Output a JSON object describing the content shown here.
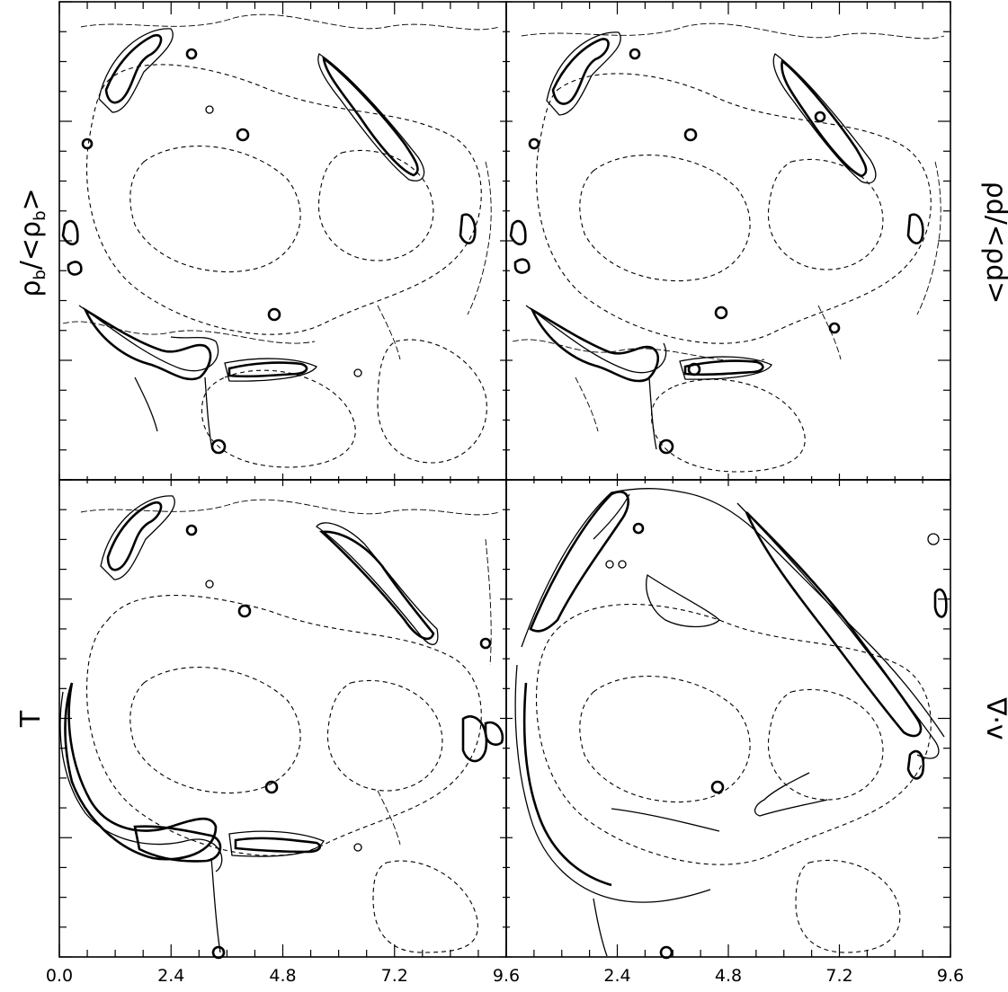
{
  "chart_data": [
    {
      "type": "contour",
      "panel": "top-left",
      "label": "",
      "x_ticks": [
        "0.0",
        "2.4",
        "4.8",
        "7.2",
        "9.6"
      ],
      "xlim": [
        0.0,
        9.6
      ],
      "ylim": [
        0.0,
        9.6
      ]
    },
    {
      "type": "contour",
      "panel": "top-right",
      "label": "ρd/<ρd>",
      "xlim": [
        0.0,
        9.6
      ],
      "ylim": [
        0.0,
        9.6
      ]
    },
    {
      "type": "contour",
      "panel": "bottom-left",
      "label": "T",
      "xlim": [
        0.0,
        9.6
      ],
      "ylim": [
        0.0,
        9.6
      ]
    },
    {
      "type": "contour",
      "panel": "bottom-right",
      "label": "∇·v",
      "x_ticks": [
        "2.4",
        "4.8",
        "7.2",
        "9.6"
      ],
      "xlim": [
        0.0,
        9.6
      ],
      "ylim": [
        0.0,
        9.6
      ]
    }
  ],
  "labels": {
    "top_left_main": "ρ",
    "top_left_sub": "b",
    "top_left_rest": "/<ρ",
    "top_left_sub2": "b",
    "top_left_close": ">",
    "top_right": "ρd/<ρd>",
    "bottom_left": "T",
    "bottom_right": "∇·v"
  },
  "ticks": {
    "x_left": [
      "0.0",
      "2.4",
      "4.8",
      "7.2"
    ],
    "x_mid": "9.6",
    "x_right": [
      "2.4",
      "4.8",
      "7.2",
      "9.6"
    ]
  }
}
